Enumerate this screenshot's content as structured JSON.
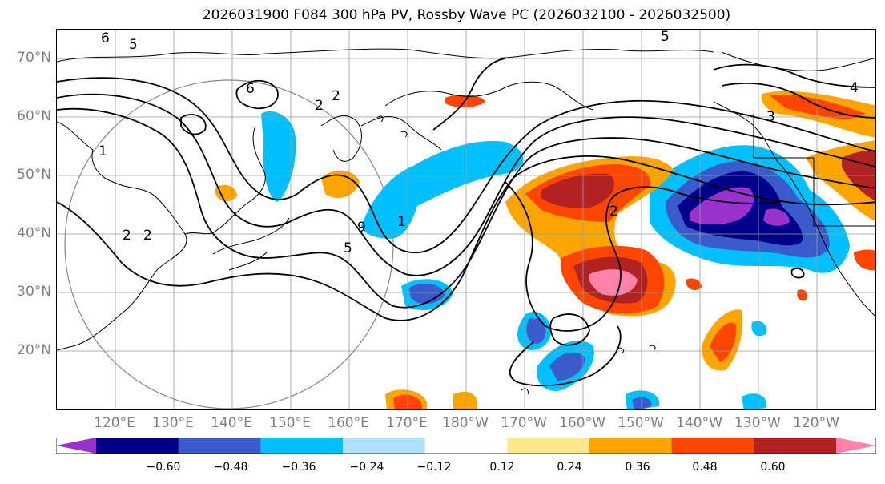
{
  "title": "2026031900 F084 300 hPa PV, Rossby Wave PC (2026032100 - 2026032500)",
  "lat_labels": [
    "70°N",
    "60°N",
    "50°N",
    "40°N",
    "30°N",
    "20°N"
  ],
  "lon_labels": [
    "120°E",
    "130°E",
    "140°E",
    "150°E",
    "160°E",
    "170°E",
    "180°W",
    "170°W",
    "160°W",
    "150°W",
    "140°W",
    "130°W",
    "120°W"
  ],
  "contour_labels": [
    "6",
    "5",
    "6",
    "2",
    "2",
    "5",
    "4",
    "3",
    "2",
    "1",
    "2",
    "2",
    "9",
    "5",
    "1"
  ],
  "colorbar": {
    "tick_labels": [
      "−0.60",
      "−0.48",
      "−0.36",
      "−0.24",
      "−0.12",
      "0.12",
      "0.24",
      "0.36",
      "0.48",
      "0.60"
    ],
    "colors": [
      "#9932cc",
      "#00008b",
      "#3a5bcc",
      "#00bfff",
      "#b0e0ff",
      "#ffffff",
      "#ffe88a",
      "#ffa500",
      "#ff4500",
      "#b22222",
      "#ff82ab"
    ]
  },
  "legend_colors": {
    "neg_060": "#9932cc",
    "neg_048": "#00008b",
    "neg_036": "#3a5bcc",
    "neg_024": "#00bfff",
    "neg_012": "#b0e0ff",
    "pos_012": "#ffe88a",
    "pos_024": "#ffa500",
    "pos_036": "#ff4500",
    "pos_048": "#b22222",
    "pos_060": "#ff82ab"
  }
}
